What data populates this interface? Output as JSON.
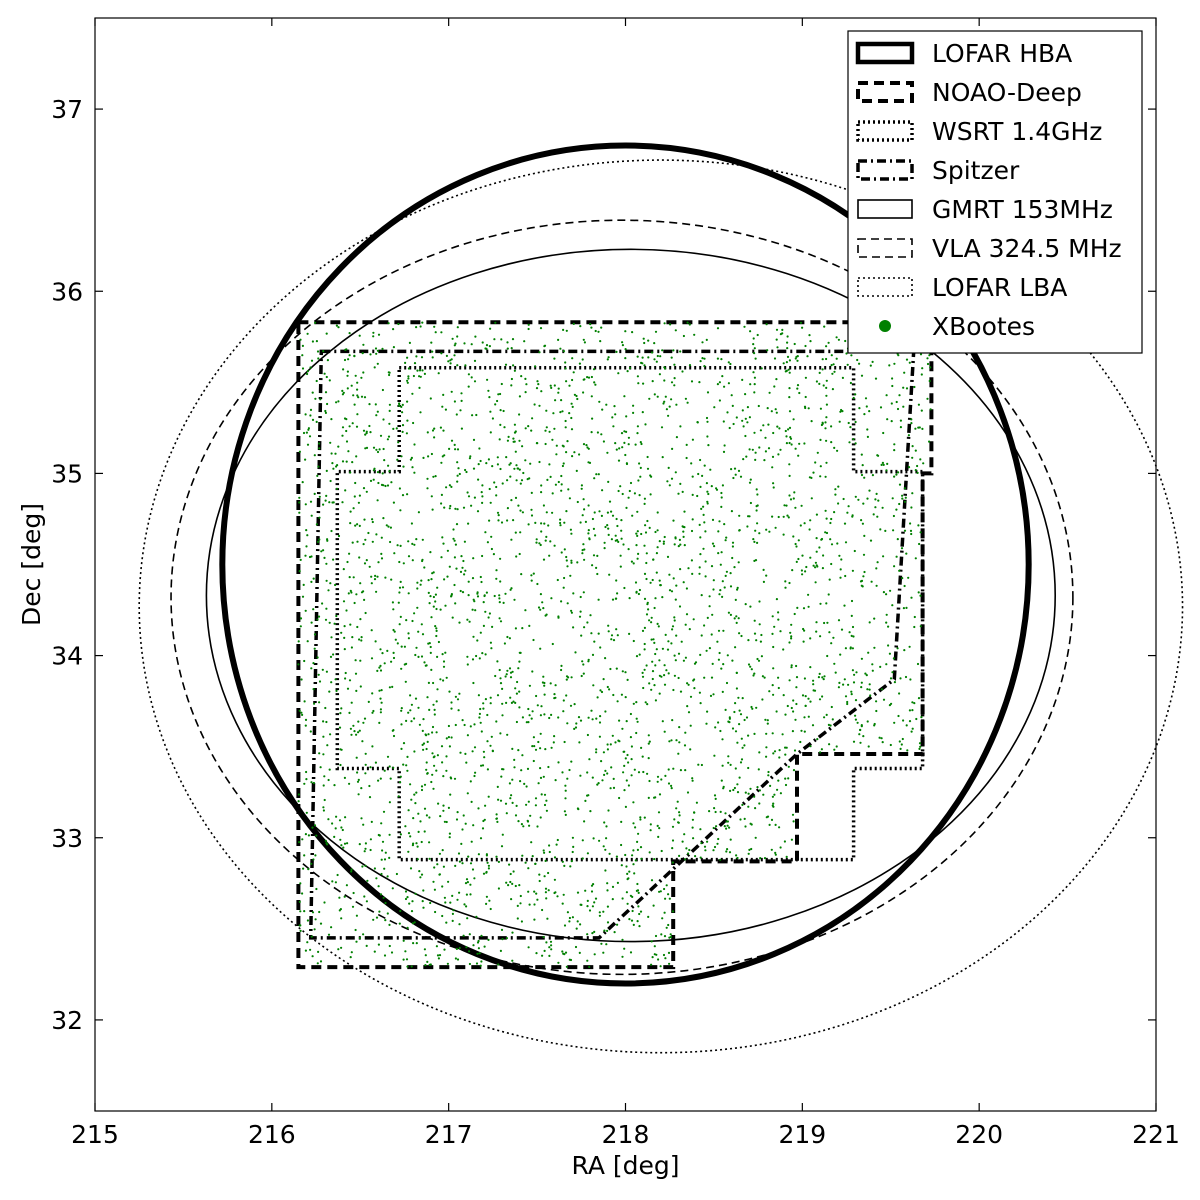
{
  "chart_data": {
    "type": "scatter",
    "xlabel": "RA [deg]",
    "ylabel": "Dec [deg]",
    "xlim": [
      215,
      221
    ],
    "ylim": [
      31.5,
      37.5
    ],
    "x_ticks": [
      215,
      216,
      217,
      218,
      219,
      220,
      221
    ],
    "y_ticks": [
      32,
      33,
      34,
      35,
      36,
      37
    ],
    "x_tick_labels": [
      "215",
      "216",
      "217",
      "218",
      "219",
      "220",
      "221"
    ],
    "y_tick_labels": [
      "32",
      "33",
      "34",
      "35",
      "36",
      "37"
    ],
    "grid": false,
    "legend_position": "top-right",
    "series": [
      {
        "name": "LOFAR HBA",
        "shape": "ellipse",
        "style": "solid-thick",
        "center": [
          218.0,
          34.5
        ],
        "radius_ra": 2.28,
        "radius_dec": 2.3
      },
      {
        "name": "NOAO-Deep",
        "shape": "polygon",
        "style": "dashed-thick",
        "points": [
          [
            216.15,
            35.83
          ],
          [
            219.73,
            35.83
          ],
          [
            219.73,
            35.0
          ],
          [
            219.68,
            35.0
          ],
          [
            219.68,
            33.46
          ],
          [
            218.97,
            33.46
          ],
          [
            218.97,
            32.87
          ],
          [
            218.27,
            32.87
          ],
          [
            218.27,
            32.29
          ],
          [
            216.15,
            32.29
          ]
        ]
      },
      {
        "name": "WSRT 1.4GHz",
        "shape": "polygon",
        "style": "dotted-thick",
        "points": [
          [
            216.72,
            35.58
          ],
          [
            219.29,
            35.58
          ],
          [
            219.29,
            35.01
          ],
          [
            219.68,
            35.01
          ],
          [
            219.68,
            33.38
          ],
          [
            219.29,
            33.38
          ],
          [
            219.29,
            32.88
          ],
          [
            216.72,
            32.88
          ],
          [
            216.72,
            33.38
          ],
          [
            216.37,
            33.38
          ],
          [
            216.37,
            35.01
          ],
          [
            216.72,
            35.01
          ]
        ]
      },
      {
        "name": "Spitzer",
        "shape": "polygon",
        "style": "dashdot-thick",
        "points": [
          [
            216.28,
            35.67
          ],
          [
            219.63,
            35.67
          ],
          [
            219.52,
            33.87
          ],
          [
            218.97,
            33.46
          ],
          [
            217.85,
            32.45
          ],
          [
            216.22,
            32.45
          ]
        ]
      },
      {
        "name": "GMRT 153MHz",
        "shape": "ellipse",
        "style": "solid-thin",
        "center": [
          218.03,
          34.33
        ],
        "radius_ra": 2.4,
        "radius_dec": 1.9
      },
      {
        "name": "VLA 324.5 MHz",
        "shape": "ellipse",
        "style": "dashed-thin",
        "center": [
          217.98,
          34.32
        ],
        "radius_ra": 2.55,
        "radius_dec": 2.07
      },
      {
        "name": "LOFAR LBA",
        "shape": "ellipse",
        "style": "dotted-thin",
        "center": [
          218.2,
          34.27
        ],
        "radius_ra": 2.95,
        "radius_dec": 2.45
      },
      {
        "name": "XBootes",
        "shape": "points",
        "style": "dot",
        "color": "#008000",
        "n_points": 3400,
        "note_region": "NOAO-Deep footprint"
      }
    ]
  }
}
